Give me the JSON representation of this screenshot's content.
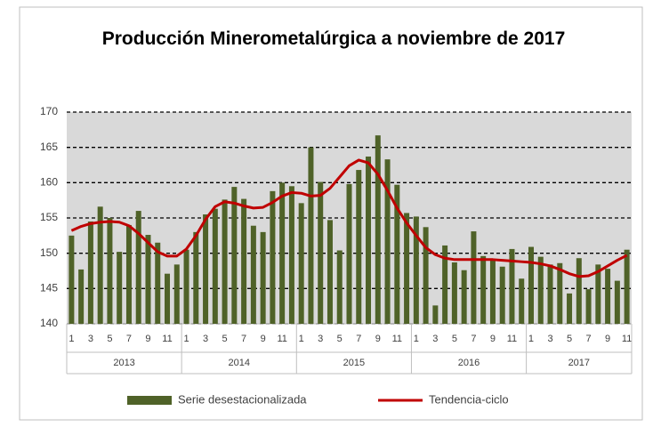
{
  "chart_data": {
    "type": "bar",
    "title": "Producción Minerometalúrgica a noviembre de 2017",
    "categories": [
      "1",
      null,
      "3",
      null,
      "5",
      null,
      "7",
      null,
      "9",
      null,
      "11",
      null,
      "1",
      null,
      "3",
      null,
      "5",
      null,
      "7",
      null,
      "9",
      null,
      "11",
      null,
      "1",
      null,
      "3",
      null,
      "5",
      null,
      "7",
      null,
      "9",
      null,
      "11",
      null,
      "1",
      null,
      "3",
      null,
      "5",
      null,
      "7",
      null,
      "9",
      null,
      "11",
      null,
      "1",
      null,
      "3",
      null,
      "5",
      null,
      "7",
      null,
      "9",
      null,
      "11"
    ],
    "years": [
      "2013",
      "2014",
      "2015",
      "2016",
      "2017"
    ],
    "series": [
      {
        "name": "Serie desestacionalizada",
        "type": "bar",
        "color": "#4f6228",
        "values": [
          152.5,
          147.7,
          154.5,
          156.6,
          155.0,
          150.2,
          154.0,
          156.0,
          152.6,
          151.5,
          147.1,
          148.4,
          150.5,
          153.0,
          155.5,
          156.3,
          157.6,
          159.4,
          157.7,
          153.9,
          153.0,
          158.8,
          160.0,
          159.5,
          157.1,
          165.0,
          160.1,
          154.7,
          150.4,
          159.8,
          161.8,
          163.7,
          166.7,
          163.3,
          159.7,
          155.7,
          155.2,
          153.7,
          142.6,
          151.1,
          148.7,
          147.6,
          153.1,
          149.6,
          149.0,
          148.1,
          150.6,
          146.4,
          150.9,
          149.5,
          148.4,
          148.6,
          144.3,
          149.3,
          144.9,
          148.4,
          147.8,
          146.1,
          150.5
        ]
      },
      {
        "name": "Tendencia-ciclo",
        "type": "line",
        "color": "#c00000",
        "values": [
          153.2,
          153.8,
          154.2,
          154.4,
          154.5,
          154.4,
          153.9,
          152.8,
          151.5,
          150.2,
          149.6,
          149.6,
          150.6,
          152.5,
          154.8,
          156.6,
          157.3,
          157.1,
          156.7,
          156.4,
          156.5,
          157.2,
          158.1,
          158.6,
          158.5,
          158.1,
          158.2,
          159.2,
          160.8,
          162.4,
          163.2,
          162.8,
          161.2,
          158.9,
          156.4,
          154.3,
          152.5,
          150.8,
          149.8,
          149.3,
          149.1,
          149.1,
          149.1,
          149.1,
          149.1,
          149.0,
          148.9,
          148.8,
          148.7,
          148.5,
          148.2,
          147.7,
          147.1,
          146.7,
          146.8,
          147.4,
          148.2,
          149.0,
          149.7
        ]
      }
    ],
    "ylim": [
      140,
      170
    ],
    "yticks": [
      140,
      145,
      150,
      155,
      160,
      165,
      170
    ],
    "grid": true
  }
}
